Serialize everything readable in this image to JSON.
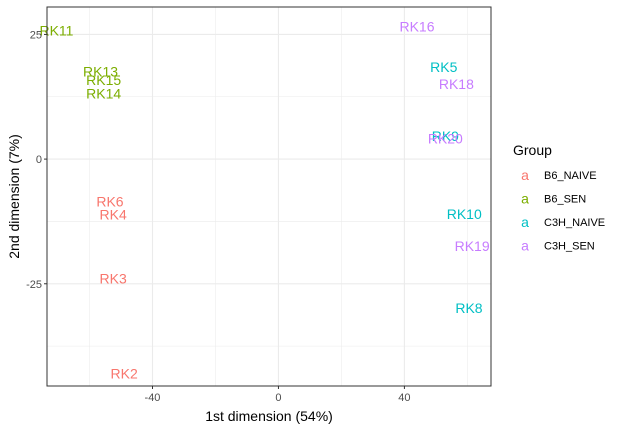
{
  "chart_data": {
    "type": "scatter",
    "xlabel": "1st dimension (54%)",
    "ylabel": "2nd dimension (7%)",
    "xlim": [
      -73.5,
      67.5
    ],
    "ylim": [
      -45.5,
      30.5
    ],
    "x_ticks": [
      -40,
      0,
      40
    ],
    "x_tick_labels": [
      "-40",
      "0",
      "40"
    ],
    "y_ticks": [
      -25,
      0,
      25
    ],
    "y_tick_labels": [
      "-25",
      "0",
      "25"
    ],
    "grid": true,
    "legend": {
      "title": "Group",
      "position": "right",
      "key_glyph": "a",
      "items": [
        {
          "name": "B6_NAIVE",
          "color": "#F8766D"
        },
        {
          "name": "B6_SEN",
          "color": "#7CAE00"
        },
        {
          "name": "C3H_NAIVE",
          "color": "#00BFC4"
        },
        {
          "name": "C3H_SEN",
          "color": "#C77CFF"
        }
      ]
    },
    "points": [
      {
        "label": "RK11",
        "x": -70.5,
        "y": 25.8,
        "group": "B6_SEN"
      },
      {
        "label": "RK13",
        "x": -56.5,
        "y": 17.6,
        "group": "B6_SEN"
      },
      {
        "label": "RK15",
        "x": -55.5,
        "y": 15.9,
        "group": "B6_SEN"
      },
      {
        "label": "RK14",
        "x": -55.5,
        "y": 13.2,
        "group": "B6_SEN"
      },
      {
        "label": "RK6",
        "x": -53.5,
        "y": -8.5,
        "group": "B6_NAIVE"
      },
      {
        "label": "RK4",
        "x": -52.5,
        "y": -11.1,
        "group": "B6_NAIVE"
      },
      {
        "label": "RK3",
        "x": -52.5,
        "y": -23.9,
        "group": "B6_NAIVE"
      },
      {
        "label": "RK2",
        "x": -49.0,
        "y": -43.0,
        "group": "B6_NAIVE"
      },
      {
        "label": "RK16",
        "x": 44.0,
        "y": 26.6,
        "group": "C3H_SEN"
      },
      {
        "label": "RK5",
        "x": 52.5,
        "y": 18.5,
        "group": "C3H_NAIVE"
      },
      {
        "label": "RK18",
        "x": 56.5,
        "y": 15.1,
        "group": "C3H_SEN"
      },
      {
        "label": "RK9",
        "x": 53.0,
        "y": 4.6,
        "group": "C3H_NAIVE"
      },
      {
        "label": "RK20",
        "x": 53.0,
        "y": 4.1,
        "group": "C3H_SEN"
      },
      {
        "label": "RK10",
        "x": 59.0,
        "y": -11.0,
        "group": "C3H_NAIVE"
      },
      {
        "label": "RK19",
        "x": 61.5,
        "y": -17.4,
        "group": "C3H_SEN"
      },
      {
        "label": "RK8",
        "x": 60.5,
        "y": -29.9,
        "group": "C3H_NAIVE"
      }
    ]
  }
}
